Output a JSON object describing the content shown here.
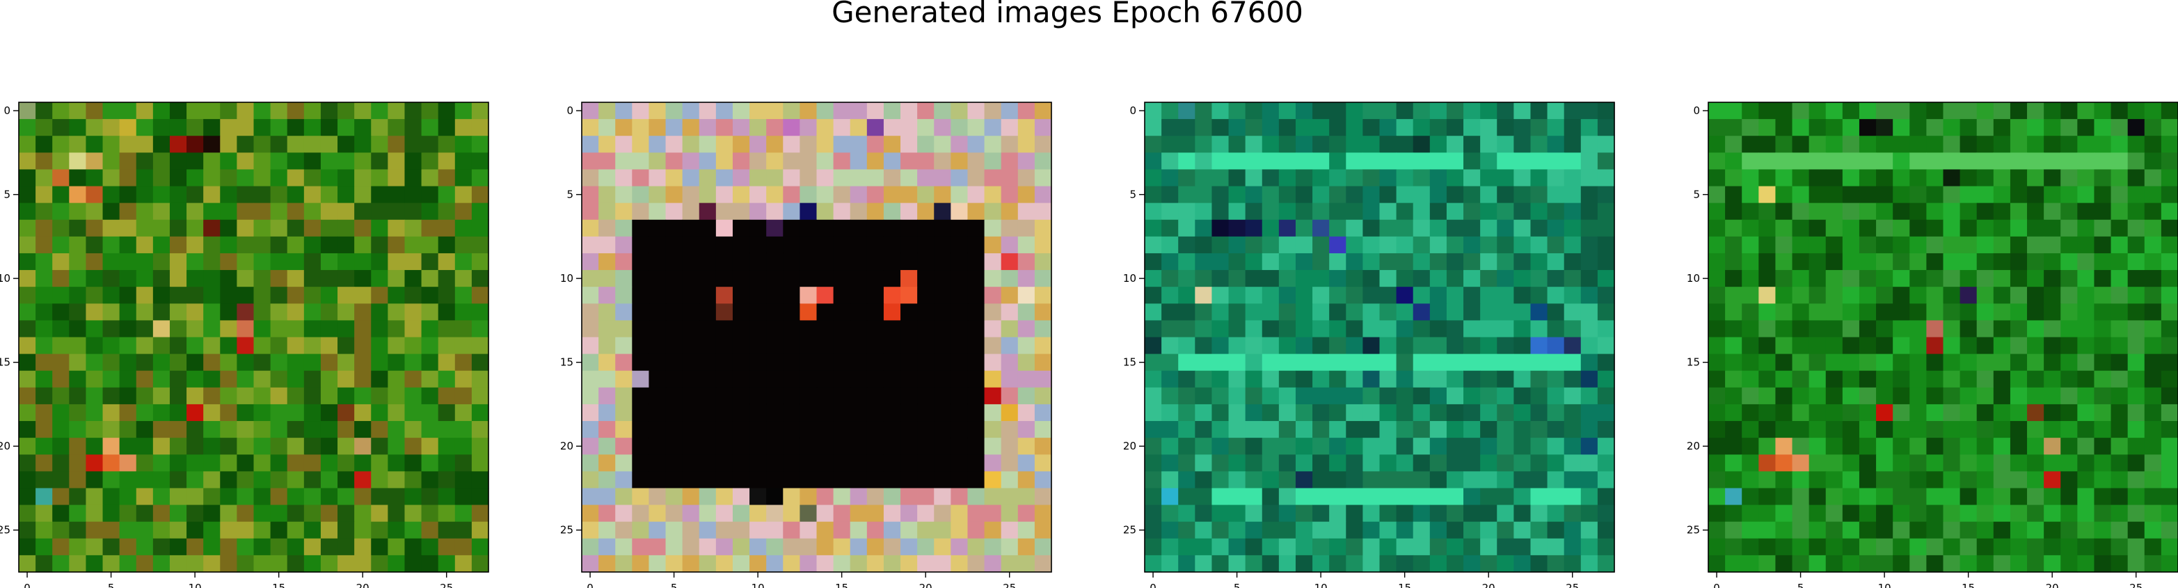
{
  "figure": {
    "suptitle": "Generated images Epoch 67600"
  },
  "chart_data": [
    {
      "type": "heatmap",
      "title": "",
      "xlabel": "",
      "ylabel": "",
      "grid_size": 28,
      "xlim": [
        -0.5,
        27.5
      ],
      "ylim": [
        27.5,
        -0.5
      ],
      "x_ticks": [
        0,
        5,
        10,
        15,
        20,
        25
      ],
      "y_ticks": [
        0,
        5,
        10,
        15,
        20,
        25
      ],
      "grid": false,
      "palette": [
        "#0b4f06",
        "#116d0b",
        "#1a840f",
        "#2a9418",
        "#3f7e12",
        "#5a9a1a",
        "#7ba327",
        "#a2a52e",
        "#7a6b1a",
        "#1d5a0c"
      ],
      "accents": [
        {
          "x": 3,
          "y": 3,
          "color": "#d8d88a"
        },
        {
          "x": 4,
          "y": 3,
          "color": "#c9a750"
        },
        {
          "x": 9,
          "y": 2,
          "color": "#a3160a"
        },
        {
          "x": 10,
          "y": 2,
          "color": "#5a0a05"
        },
        {
          "x": 11,
          "y": 2,
          "color": "#1a0a05"
        },
        {
          "x": 2,
          "y": 4,
          "color": "#c96b2a"
        },
        {
          "x": 3,
          "y": 5,
          "color": "#e79c4a"
        },
        {
          "x": 4,
          "y": 5,
          "color": "#c05a22"
        },
        {
          "x": 11,
          "y": 7,
          "color": "#6a1a0a"
        },
        {
          "x": 13,
          "y": 12,
          "color": "#7a2a20"
        },
        {
          "x": 13,
          "y": 13,
          "color": "#d0704a"
        },
        {
          "x": 13,
          "y": 14,
          "color": "#c21a10"
        },
        {
          "x": 8,
          "y": 13,
          "color": "#d9c06a"
        },
        {
          "x": 10,
          "y": 18,
          "color": "#c81208"
        },
        {
          "x": 5,
          "y": 20,
          "color": "#e9a560"
        },
        {
          "x": 4,
          "y": 21,
          "color": "#c81a0a"
        },
        {
          "x": 5,
          "y": 21,
          "color": "#e46a2a"
        },
        {
          "x": 6,
          "y": 21,
          "color": "#e2905a"
        },
        {
          "x": 20,
          "y": 20,
          "color": "#c09a5a"
        },
        {
          "x": 20,
          "y": 22,
          "color": "#c71a10"
        },
        {
          "x": 1,
          "y": 23,
          "color": "#3aa89a"
        },
        {
          "x": 19,
          "y": 18,
          "color": "#7a3a12"
        },
        {
          "x": 0,
          "y": 0,
          "color": "#8da46a"
        },
        {
          "x": 6,
          "y": 1,
          "color": "#c7b030"
        }
      ]
    },
    {
      "type": "heatmap",
      "title": "",
      "xlabel": "",
      "ylabel": "",
      "grid_size": 28,
      "xlim": [
        -0.5,
        27.5
      ],
      "ylim": [
        27.5,
        -0.5
      ],
      "x_ticks": [
        0,
        5,
        10,
        15,
        20,
        25
      ],
      "y_ticks": [
        0,
        5,
        10,
        15,
        20,
        25
      ],
      "grid": false,
      "palette": [
        "#c9b090",
        "#d6a84e",
        "#b7c37a",
        "#d9868e",
        "#a3c7a0",
        "#e0c870",
        "#c79ac0",
        "#9ab0d0",
        "#e6c0c6",
        "#bcd6a8"
      ],
      "inner_color": "#070404",
      "inner_box": [
        3,
        7,
        23,
        22
      ],
      "accents": [
        {
          "x": 13,
          "y": 11,
          "color": "#f2ab9a"
        },
        {
          "x": 14,
          "y": 11,
          "color": "#ec4a3a"
        },
        {
          "x": 13,
          "y": 12,
          "color": "#e6501e"
        },
        {
          "x": 18,
          "y": 11,
          "color": "#f04c2a"
        },
        {
          "x": 19,
          "y": 11,
          "color": "#f25a30"
        },
        {
          "x": 18,
          "y": 12,
          "color": "#e63c1a"
        },
        {
          "x": 19,
          "y": 10,
          "color": "#e8502a"
        },
        {
          "x": 8,
          "y": 11,
          "color": "#b4402a"
        },
        {
          "x": 8,
          "y": 12,
          "color": "#6a2a1a"
        },
        {
          "x": 22,
          "y": 6,
          "color": "#f2d0b0"
        },
        {
          "x": 21,
          "y": 6,
          "color": "#1a1a3a"
        },
        {
          "x": 13,
          "y": 6,
          "color": "#101060"
        },
        {
          "x": 7,
          "y": 6,
          "color": "#5a1a3a"
        },
        {
          "x": 8,
          "y": 7,
          "color": "#f0c0c8"
        },
        {
          "x": 11,
          "y": 7,
          "color": "#3a1a4a"
        },
        {
          "x": 10,
          "y": 23,
          "color": "#101010"
        },
        {
          "x": 11,
          "y": 23,
          "color": "#050505"
        },
        {
          "x": 11,
          "y": 24,
          "color": "#d8c0a0"
        },
        {
          "x": 13,
          "y": 24,
          "color": "#606848"
        },
        {
          "x": 24,
          "y": 16,
          "color": "#e6c050"
        },
        {
          "x": 24,
          "y": 17,
          "color": "#c01010"
        },
        {
          "x": 25,
          "y": 18,
          "color": "#e6b030"
        },
        {
          "x": 24,
          "y": 22,
          "color": "#f0c040"
        },
        {
          "x": 25,
          "y": 9,
          "color": "#e63c3c"
        },
        {
          "x": 26,
          "y": 11,
          "color": "#f0e0c0"
        },
        {
          "x": 17,
          "y": 1,
          "color": "#7a40a0"
        },
        {
          "x": 12,
          "y": 1,
          "color": "#c070c0"
        },
        {
          "x": 3,
          "y": 16,
          "color": "#b0a0c0"
        }
      ]
    },
    {
      "type": "heatmap",
      "title": "",
      "xlabel": "",
      "ylabel": "",
      "grid_size": 28,
      "xlim": [
        -0.5,
        27.5
      ],
      "ylim": [
        27.5,
        -0.5
      ],
      "x_ticks": [
        0,
        5,
        10,
        15,
        20,
        25
      ],
      "y_ticks": [
        0,
        5,
        10,
        15,
        20,
        25
      ],
      "grid": false,
      "palette": [
        "#0a8a5a",
        "#10704a",
        "#18a070",
        "#2ab888",
        "#0e6248",
        "#1a9060",
        "#0c5a40",
        "#35c090",
        "#0a7a60",
        "#1a7a50"
      ],
      "bright_rows": [
        3,
        15,
        23
      ],
      "bright_color": "#3ce4a6",
      "accents": [
        {
          "x": 4,
          "y": 7,
          "color": "#0a0a30"
        },
        {
          "x": 5,
          "y": 7,
          "color": "#101040"
        },
        {
          "x": 6,
          "y": 7,
          "color": "#101a50"
        },
        {
          "x": 8,
          "y": 7,
          "color": "#202a70"
        },
        {
          "x": 11,
          "y": 8,
          "color": "#3a3ac0"
        },
        {
          "x": 10,
          "y": 7,
          "color": "#2a4a90"
        },
        {
          "x": 3,
          "y": 11,
          "color": "#e0d0a0"
        },
        {
          "x": 15,
          "y": 11,
          "color": "#101070"
        },
        {
          "x": 16,
          "y": 12,
          "color": "#1a3080"
        },
        {
          "x": 23,
          "y": 12,
          "color": "#0a4a80"
        },
        {
          "x": 23,
          "y": 14,
          "color": "#3070d0"
        },
        {
          "x": 24,
          "y": 14,
          "color": "#2a60c0"
        },
        {
          "x": 25,
          "y": 14,
          "color": "#203060"
        },
        {
          "x": 26,
          "y": 16,
          "color": "#0a3a60"
        },
        {
          "x": 13,
          "y": 14,
          "color": "#0a2a3a"
        },
        {
          "x": 9,
          "y": 22,
          "color": "#103050"
        },
        {
          "x": 1,
          "y": 23,
          "color": "#2ab4d0"
        },
        {
          "x": 0,
          "y": 14,
          "color": "#0a3a3a"
        },
        {
          "x": 2,
          "y": 0,
          "color": "#2a8a8a"
        },
        {
          "x": 16,
          "y": 2,
          "color": "#0a3a30"
        },
        {
          "x": 13,
          "y": 16,
          "color": "#0a5a60"
        },
        {
          "x": 26,
          "y": 20,
          "color": "#0a4a70"
        }
      ]
    },
    {
      "type": "heatmap",
      "title": "",
      "xlabel": "",
      "ylabel": "",
      "grid_size": 28,
      "xlim": [
        -0.5,
        27.5
      ],
      "ylim": [
        27.5,
        -0.5
      ],
      "x_ticks": [
        0,
        5,
        10,
        15,
        20,
        25
      ],
      "y_ticks": [
        0,
        5,
        10,
        15,
        20,
        25
      ],
      "grid": false,
      "palette": [
        "#0c5a0a",
        "#117a12",
        "#1a9a20",
        "#2aa02a",
        "#0a4a0a",
        "#158a18",
        "#3a9a3a",
        "#0e6a10",
        "#22b030",
        "#1a7a1a"
      ],
      "bright_rows": [
        3
      ],
      "bright_color": "#56c85c",
      "accents": [
        {
          "x": 9,
          "y": 1,
          "color": "#0a0a0a"
        },
        {
          "x": 10,
          "y": 1,
          "color": "#102010"
        },
        {
          "x": 25,
          "y": 1,
          "color": "#0a0a10"
        },
        {
          "x": 3,
          "y": 5,
          "color": "#e8d06a"
        },
        {
          "x": 3,
          "y": 11,
          "color": "#e0d080"
        },
        {
          "x": 10,
          "y": 18,
          "color": "#c81208"
        },
        {
          "x": 4,
          "y": 20,
          "color": "#e9a560"
        },
        {
          "x": 4,
          "y": 21,
          "color": "#e46a2a"
        },
        {
          "x": 5,
          "y": 21,
          "color": "#e2905a"
        },
        {
          "x": 3,
          "y": 21,
          "color": "#c04a1a"
        },
        {
          "x": 20,
          "y": 20,
          "color": "#c09a5a"
        },
        {
          "x": 20,
          "y": 22,
          "color": "#c71a10"
        },
        {
          "x": 13,
          "y": 13,
          "color": "#c06a5a"
        },
        {
          "x": 13,
          "y": 14,
          "color": "#a01a10"
        },
        {
          "x": 15,
          "y": 11,
          "color": "#2a1a50"
        },
        {
          "x": 1,
          "y": 23,
          "color": "#3aa8b8"
        },
        {
          "x": 19,
          "y": 18,
          "color": "#7a3a12"
        },
        {
          "x": 14,
          "y": 4,
          "color": "#0a200a"
        }
      ]
    }
  ]
}
